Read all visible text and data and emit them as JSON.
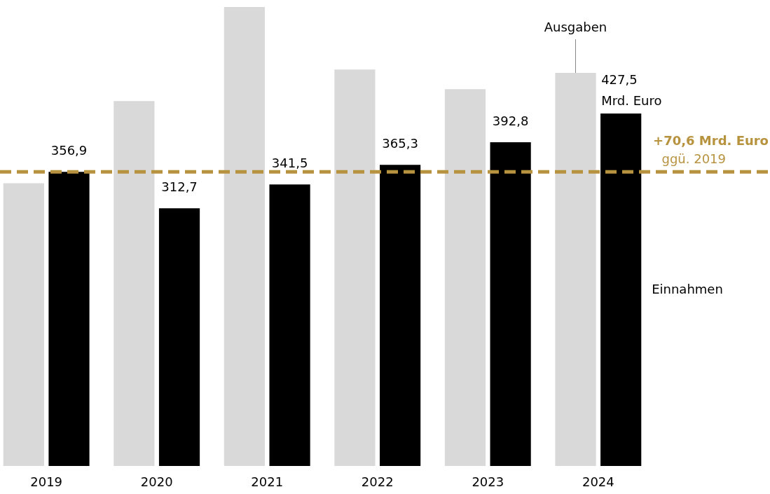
{
  "chart_data": {
    "type": "bar",
    "categories": [
      "2019",
      "2020",
      "2021",
      "2022",
      "2023",
      "2024"
    ],
    "series": [
      {
        "name": "Ausgaben",
        "color": "#d9d9d9",
        "values": [
          343.1,
          442.7,
          556.8,
          481.0,
          457.2,
          476.8
        ]
      },
      {
        "name": "Einnahmen",
        "color": "#000000",
        "values": [
          356.9,
          312.7,
          341.5,
          365.3,
          392.8,
          427.5
        ],
        "value_labels": [
          "356,9",
          "312,7",
          "341,5",
          "365,3",
          "392,8",
          "427,5"
        ]
      }
    ],
    "ref_lines": [
      {
        "axis": "y",
        "value": 356.9,
        "label": "+70,6 Mrd. Euro",
        "color": "#b8933f",
        "line_style": "dashed"
      }
    ],
    "annotations": [
      {
        "text": "Mrd. Euro",
        "x": "2024",
        "y": 427.5
      },
      "ggü. 2019"
    ],
    "legend": false
  }
}
